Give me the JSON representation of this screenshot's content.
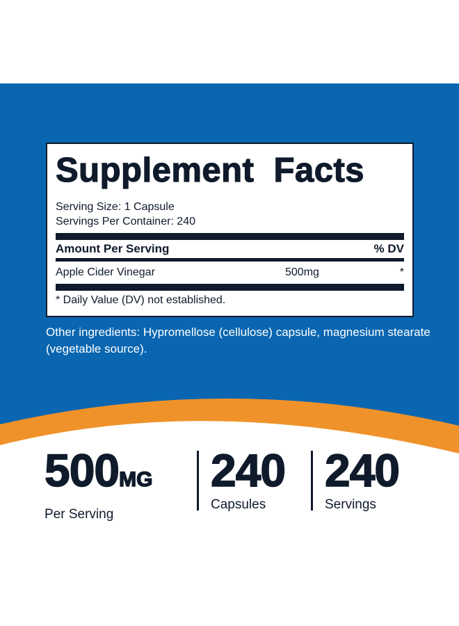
{
  "colors": {
    "blue": "#0a66b0",
    "orange": "#f0922a",
    "text": "#0f1a2b"
  },
  "facts": {
    "title": "Supplement Facts",
    "serving_size": "Serving Size: 1 Capsule",
    "servings_per_container": "Servings Per Container: 240",
    "amount_header": "Amount Per Serving",
    "dv_header": "% DV",
    "rows": [
      {
        "name": "Apple Cider Vinegar",
        "amount": "500mg",
        "dv": "*"
      }
    ],
    "footnote": "* Daily Value  (DV) not established."
  },
  "other_ingredients": "Other ingredients: Hypromellose (cellulose) capsule, magnesium stearate (vegetable source).",
  "stats": [
    {
      "value": "500",
      "unit": "MG",
      "label": "Per Serving"
    },
    {
      "value": "240",
      "unit": "",
      "label": "Capsules"
    },
    {
      "value": "240",
      "unit": "",
      "label": "Servings"
    }
  ]
}
